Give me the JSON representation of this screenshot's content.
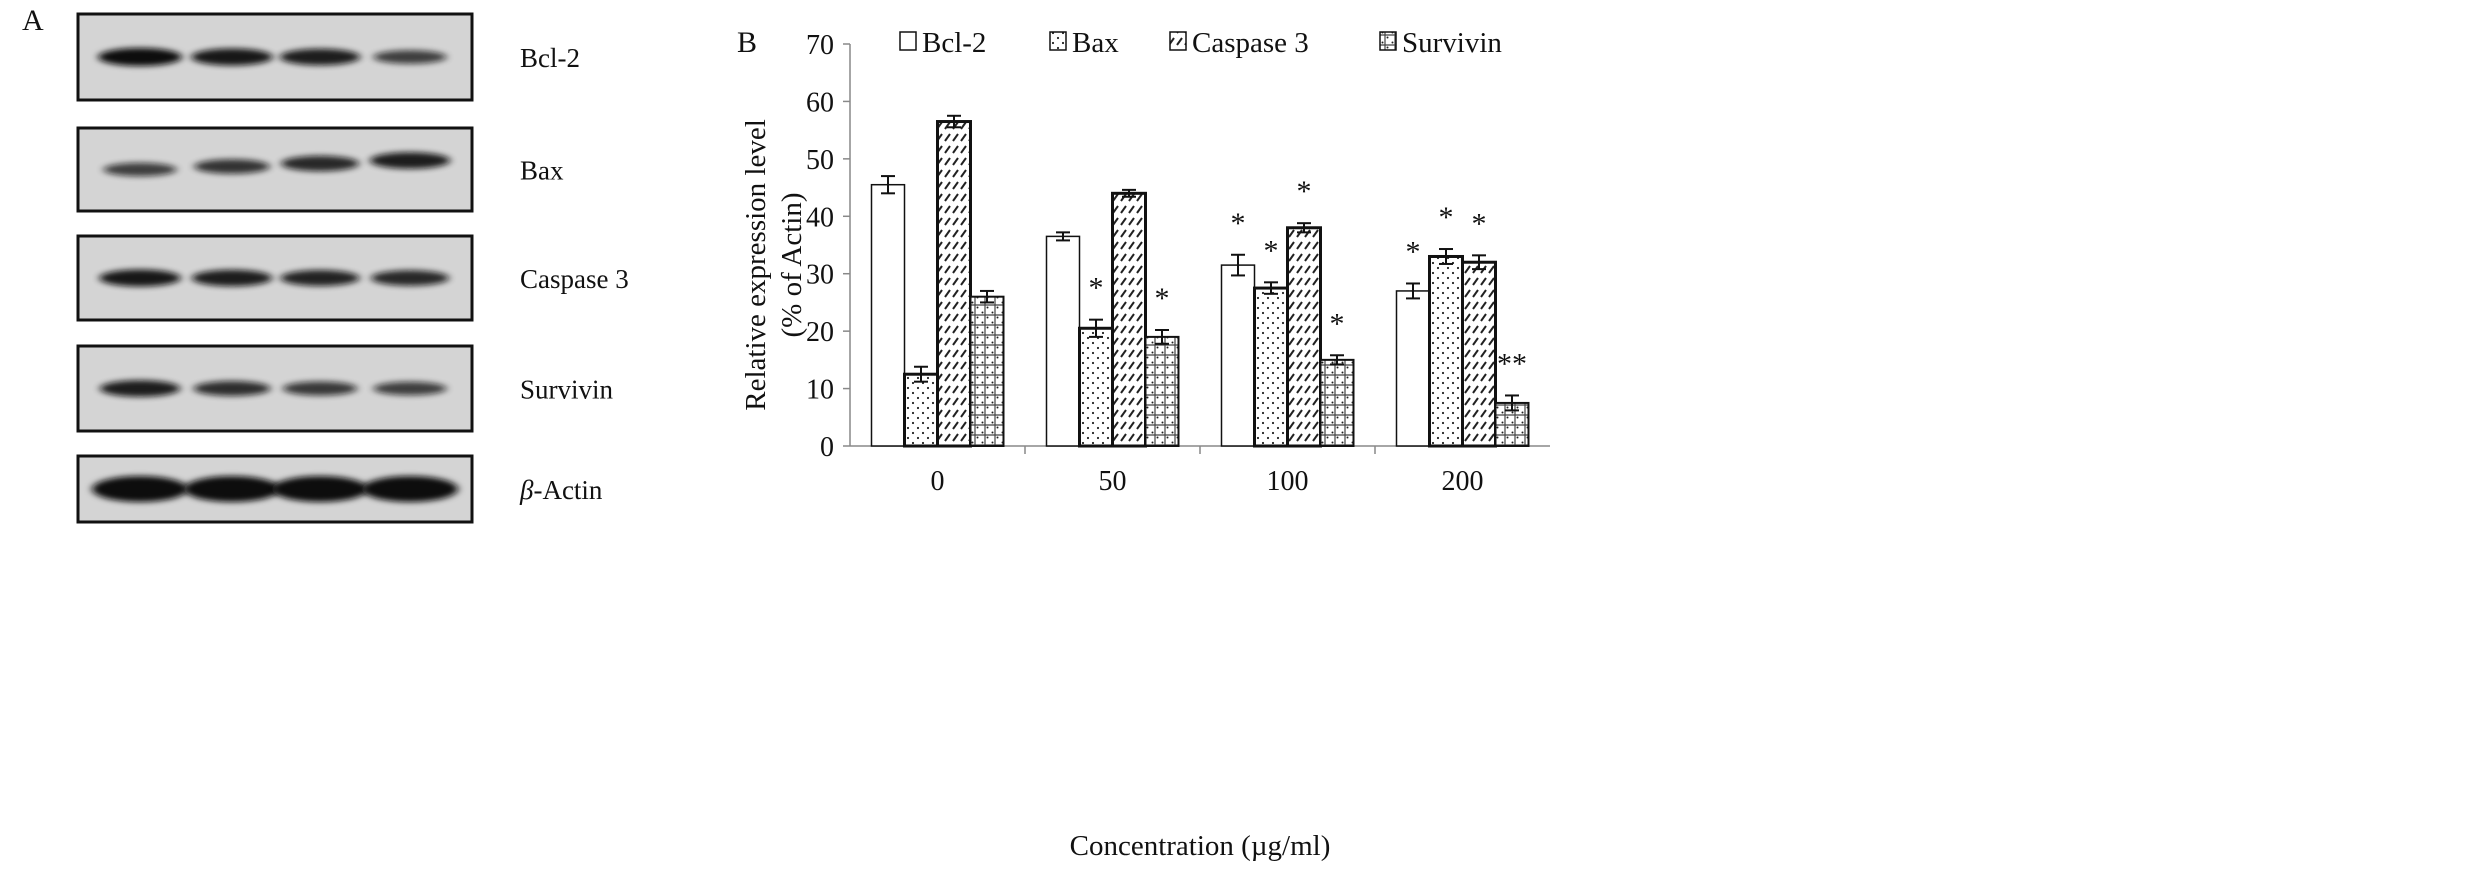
{
  "panel_a": {
    "label": "A",
    "blots": [
      {
        "label": "Bcl-2",
        "intensity": [
          1.0,
          0.9,
          0.85,
          0.55
        ]
      },
      {
        "label": "Bax",
        "intensity": [
          0.55,
          0.65,
          0.75,
          0.85
        ]
      },
      {
        "label": "Caspase 3",
        "intensity": [
          0.9,
          0.85,
          0.8,
          0.75
        ]
      },
      {
        "label": "Survivin",
        "intensity": [
          0.85,
          0.7,
          0.6,
          0.55
        ]
      },
      {
        "label": "-Actin",
        "prefix": "β",
        "intensity": [
          1.0,
          1.0,
          1.0,
          1.0
        ]
      }
    ]
  },
  "chart_data": {
    "type": "bar",
    "panel_label": "B",
    "title": "",
    "xlabel": "Concentration (µg/ml)",
    "ylabel_line1": "Relative expression level",
    "ylabel_line2": "(% of Actin)",
    "ylim": [
      0,
      70
    ],
    "yticks": [
      "0",
      "10",
      "20",
      "30",
      "40",
      "50",
      "60",
      "70"
    ],
    "categories": [
      "0",
      "50",
      "100",
      "200"
    ],
    "legend_position": "top",
    "series": [
      {
        "name": "Bcl-2",
        "pattern": "open",
        "values": [
          45.5,
          36.5,
          31.5,
          27
        ],
        "errors": [
          1.5,
          0.7,
          1.8,
          1.3
        ],
        "sig": [
          "",
          "",
          "*",
          "*"
        ]
      },
      {
        "name": "Bax",
        "pattern": "dots",
        "values": [
          12.5,
          20.5,
          27.5,
          33
        ],
        "errors": [
          1.3,
          1.5,
          1.0,
          1.3
        ],
        "sig": [
          "",
          "*",
          "*",
          "*"
        ]
      },
      {
        "name": "Caspase 3",
        "pattern": "hatch",
        "values": [
          56.5,
          44,
          38,
          32
        ],
        "errors": [
          1.0,
          0.6,
          0.8,
          1.2
        ],
        "sig": [
          "",
          "",
          "*",
          "*"
        ]
      },
      {
        "name": "Survivin",
        "pattern": "crosshatch",
        "values": [
          26,
          19,
          15,
          7.5
        ],
        "errors": [
          1.0,
          1.2,
          0.8,
          1.3
        ],
        "sig": [
          "",
          "*",
          "*",
          "**"
        ]
      }
    ]
  }
}
